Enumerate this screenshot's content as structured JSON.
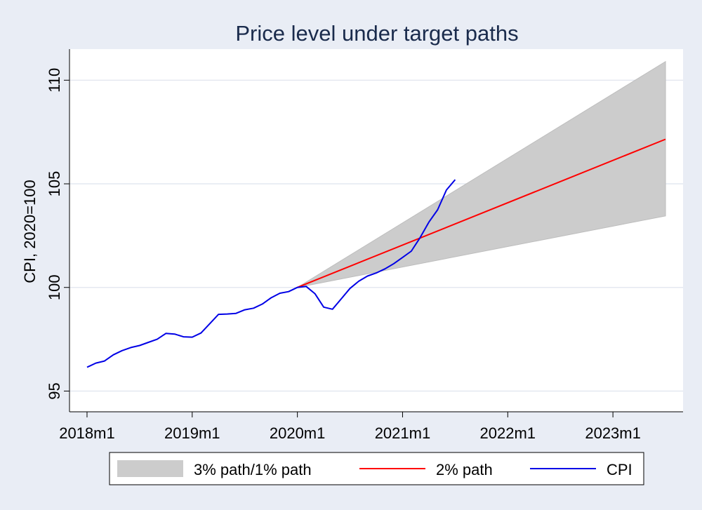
{
  "chart_data": {
    "type": "line",
    "title": "Price level under target paths",
    "xlabel": "",
    "ylabel": "CPI, 2020=100",
    "ylim": [
      94,
      111.5
    ],
    "xlim_months": [
      -2,
      68
    ],
    "grid": true,
    "legend_position": "bottom",
    "x_ticks": [
      {
        "label": "2018m1",
        "month": 0
      },
      {
        "label": "2019m1",
        "month": 12
      },
      {
        "label": "2020m1",
        "month": 24
      },
      {
        "label": "2021m1",
        "month": 36
      },
      {
        "label": "2022m1",
        "month": 48
      },
      {
        "label": "2023m1",
        "month": 60
      }
    ],
    "y_ticks": [
      95,
      100,
      105,
      110
    ],
    "x_month_labels": "months since 2018m1",
    "band": {
      "name": "3% path/1% path",
      "color": "#cccccc",
      "x": [
        24,
        66
      ],
      "upper": [
        100,
        110.9
      ],
      "lower": [
        100,
        103.45
      ]
    },
    "series": [
      {
        "name": "2% path",
        "color": "#ff0000",
        "x": [
          24,
          66
        ],
        "values": [
          100,
          107.15
        ]
      },
      {
        "name": "CPI",
        "color": "#0000e6",
        "x": [
          0,
          1,
          2,
          3,
          4,
          5,
          6,
          7,
          8,
          9,
          10,
          11,
          12,
          13,
          14,
          15,
          16,
          17,
          18,
          19,
          20,
          21,
          22,
          23,
          24,
          25,
          26,
          27,
          28,
          29,
          30,
          31,
          32,
          33,
          34,
          35,
          36,
          37,
          38,
          39,
          40,
          41,
          42
        ],
        "values": [
          96.15,
          96.35,
          96.45,
          96.75,
          96.95,
          97.1,
          97.2,
          97.35,
          97.5,
          97.78,
          97.75,
          97.62,
          97.6,
          97.8,
          98.25,
          98.7,
          98.72,
          98.75,
          98.92,
          99.0,
          99.2,
          99.5,
          99.72,
          99.8,
          100.0,
          100.05,
          99.7,
          99.05,
          98.95,
          99.45,
          99.95,
          100.3,
          100.55,
          100.7,
          100.9,
          101.15,
          101.45,
          101.75,
          102.4,
          103.15,
          103.75,
          104.7,
          105.2
        ]
      }
    ]
  }
}
